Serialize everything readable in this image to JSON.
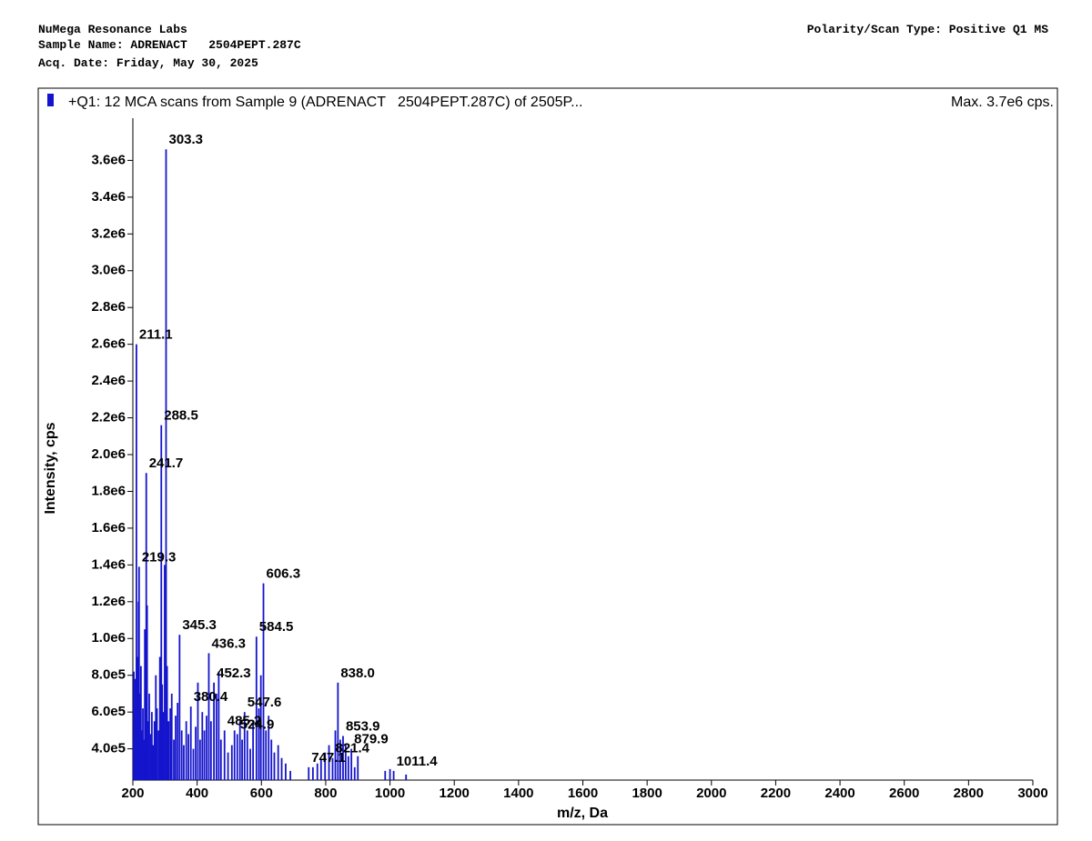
{
  "header": {
    "lab": "NuMega Resonance Labs",
    "sample": "Sample Name: ADRENACT   2504PEPT.287C",
    "date": "Acq. Date: Friday, May 30, 2025",
    "scan_type": "Polarity/Scan Type: Positive Q1 MS"
  },
  "chart_data": {
    "type": "bar",
    "max_label": "Max. 3.7e6 cps.",
    "x_label": "m/z, Da",
    "y_label": "Intensity, cps",
    "xlim": [
      200,
      3000
    ],
    "xticks": [
      200,
      400,
      600,
      800,
      1000,
      1200,
      1400,
      1600,
      1800,
      2000,
      2200,
      2400,
      2600,
      2800,
      3000
    ],
    "ylim": [
      230000,
      3780000
    ],
    "yticks": [
      {
        "value": 400000,
        "label": "4.0e5"
      },
      {
        "value": 600000,
        "label": "6.0e5"
      },
      {
        "value": 800000,
        "label": "8.0e5"
      },
      {
        "value": 1000000,
        "label": "1.0e6"
      },
      {
        "value": 1200000,
        "label": "1.2e6"
      },
      {
        "value": 1400000,
        "label": "1.4e6"
      },
      {
        "value": 1600000,
        "label": "1.6e6"
      },
      {
        "value": 1800000,
        "label": "1.8e6"
      },
      {
        "value": 2000000,
        "label": "2.0e6"
      },
      {
        "value": 2200000,
        "label": "2.2e6"
      },
      {
        "value": 2400000,
        "label": "2.4e6"
      },
      {
        "value": 2600000,
        "label": "2.6e6"
      },
      {
        "value": 2800000,
        "label": "2.8e6"
      },
      {
        "value": 3000000,
        "label": "3.0e6"
      },
      {
        "value": 3200000,
        "label": "3.2e6"
      },
      {
        "value": 3400000,
        "label": "3.4e6"
      },
      {
        "value": 3600000,
        "label": "3.6e6"
      }
    ],
    "series": [
      {
        "name": "+Q1: 12 MCA scans from Sample 9 (ADRENACT   2504PEPT.287C) of 2505P...",
        "color": "#1414cc",
        "x": [
          201.5,
          203.0,
          205.2,
          207.4,
          209.0,
          211.1,
          213.5,
          215.8,
          217.6,
          219.3,
          222.0,
          225.1,
          228.4,
          231.2,
          234.0,
          237.3,
          239.5,
          241.7,
          244.3,
          247.2,
          251.0,
          255.3,
          259.1,
          263.4,
          267.2,
          271.5,
          275.0,
          280.2,
          284.1,
          288.5,
          291.3,
          295.0,
          299.0,
          303.3,
          306.5,
          311.2,
          316.4,
          321.0,
          327.5,
          333.1,
          339.2,
          345.3,
          352.0,
          358.4,
          366.1,
          373.0,
          380.4,
          388.2,
          395.5,
          402.3,
          409.1,
          416.0,
          422.5,
          429.4,
          436.3,
          443.0,
          452.3,
          460.1,
          467.2,
          474.0,
          485.2,
          496.1,
          508.0,
          516.3,
          524.9,
          533.2,
          540.0,
          547.6,
          556.1,
          565.3,
          574.0,
          584.5,
          592.0,
          598.3,
          606.3,
          614.0,
          622.5,
          631.0,
          640.2,
          652.1,
          663.0,
          675.4,
          690.0,
          747.1,
          760.2,
          774.0,
          785.5,
          798.0,
          810.2,
          821.4,
          830.0,
          838.0,
          845.2,
          853.9,
          862.0,
          870.5,
          879.9,
          890.1,
          900.0,
          985.0,
          1000.0,
          1011.4,
          1050.0
        ],
        "values": [
          450000,
          820000,
          600000,
          780000,
          550000,
          2600000,
          900000,
          650000,
          1200000,
          1390000,
          700000,
          850000,
          500000,
          620000,
          450000,
          1050000,
          800000,
          1900000,
          1180000,
          550000,
          700000,
          480000,
          600000,
          420000,
          550000,
          800000,
          620000,
          500000,
          900000,
          2160000,
          750000,
          600000,
          1400000,
          3660000,
          850000,
          550000,
          620000,
          700000,
          450000,
          580000,
          650000,
          1020000,
          500000,
          420000,
          550000,
          480000,
          630000,
          400000,
          520000,
          760000,
          450000,
          600000,
          500000,
          580000,
          920000,
          550000,
          760000,
          700000,
          820000,
          450000,
          500000,
          380000,
          420000,
          500000,
          480000,
          550000,
          450000,
          600000,
          500000,
          400000,
          550000,
          1010000,
          620000,
          800000,
          1300000,
          500000,
          580000,
          450000,
          380000,
          420000,
          350000,
          320000,
          280000,
          300000,
          300000,
          320000,
          340000,
          380000,
          420000,
          350000,
          500000,
          760000,
          450000,
          470000,
          420000,
          360000,
          400000,
          300000,
          360000,
          280000,
          290000,
          280000,
          260000
        ],
        "labels": [
          null,
          null,
          null,
          null,
          null,
          "211.1",
          null,
          null,
          null,
          "219.3",
          null,
          null,
          null,
          null,
          null,
          null,
          null,
          "241.7",
          null,
          null,
          null,
          null,
          null,
          null,
          null,
          null,
          null,
          null,
          null,
          "288.5",
          null,
          null,
          null,
          "303.3",
          null,
          null,
          null,
          null,
          null,
          null,
          null,
          "345.3",
          null,
          null,
          null,
          null,
          "380.4",
          null,
          null,
          null,
          null,
          null,
          null,
          null,
          "436.3",
          null,
          "452.3",
          null,
          null,
          null,
          "485.2",
          null,
          null,
          null,
          "524.9",
          null,
          null,
          "547.6",
          null,
          null,
          null,
          "584.5",
          null,
          null,
          "606.3",
          null,
          null,
          null,
          null,
          null,
          null,
          null,
          null,
          "747.1",
          null,
          null,
          null,
          null,
          null,
          "821.4",
          null,
          "838.0",
          null,
          "853.9",
          null,
          null,
          "879.9",
          null,
          null,
          null,
          null,
          "1011.4",
          null
        ]
      }
    ]
  }
}
